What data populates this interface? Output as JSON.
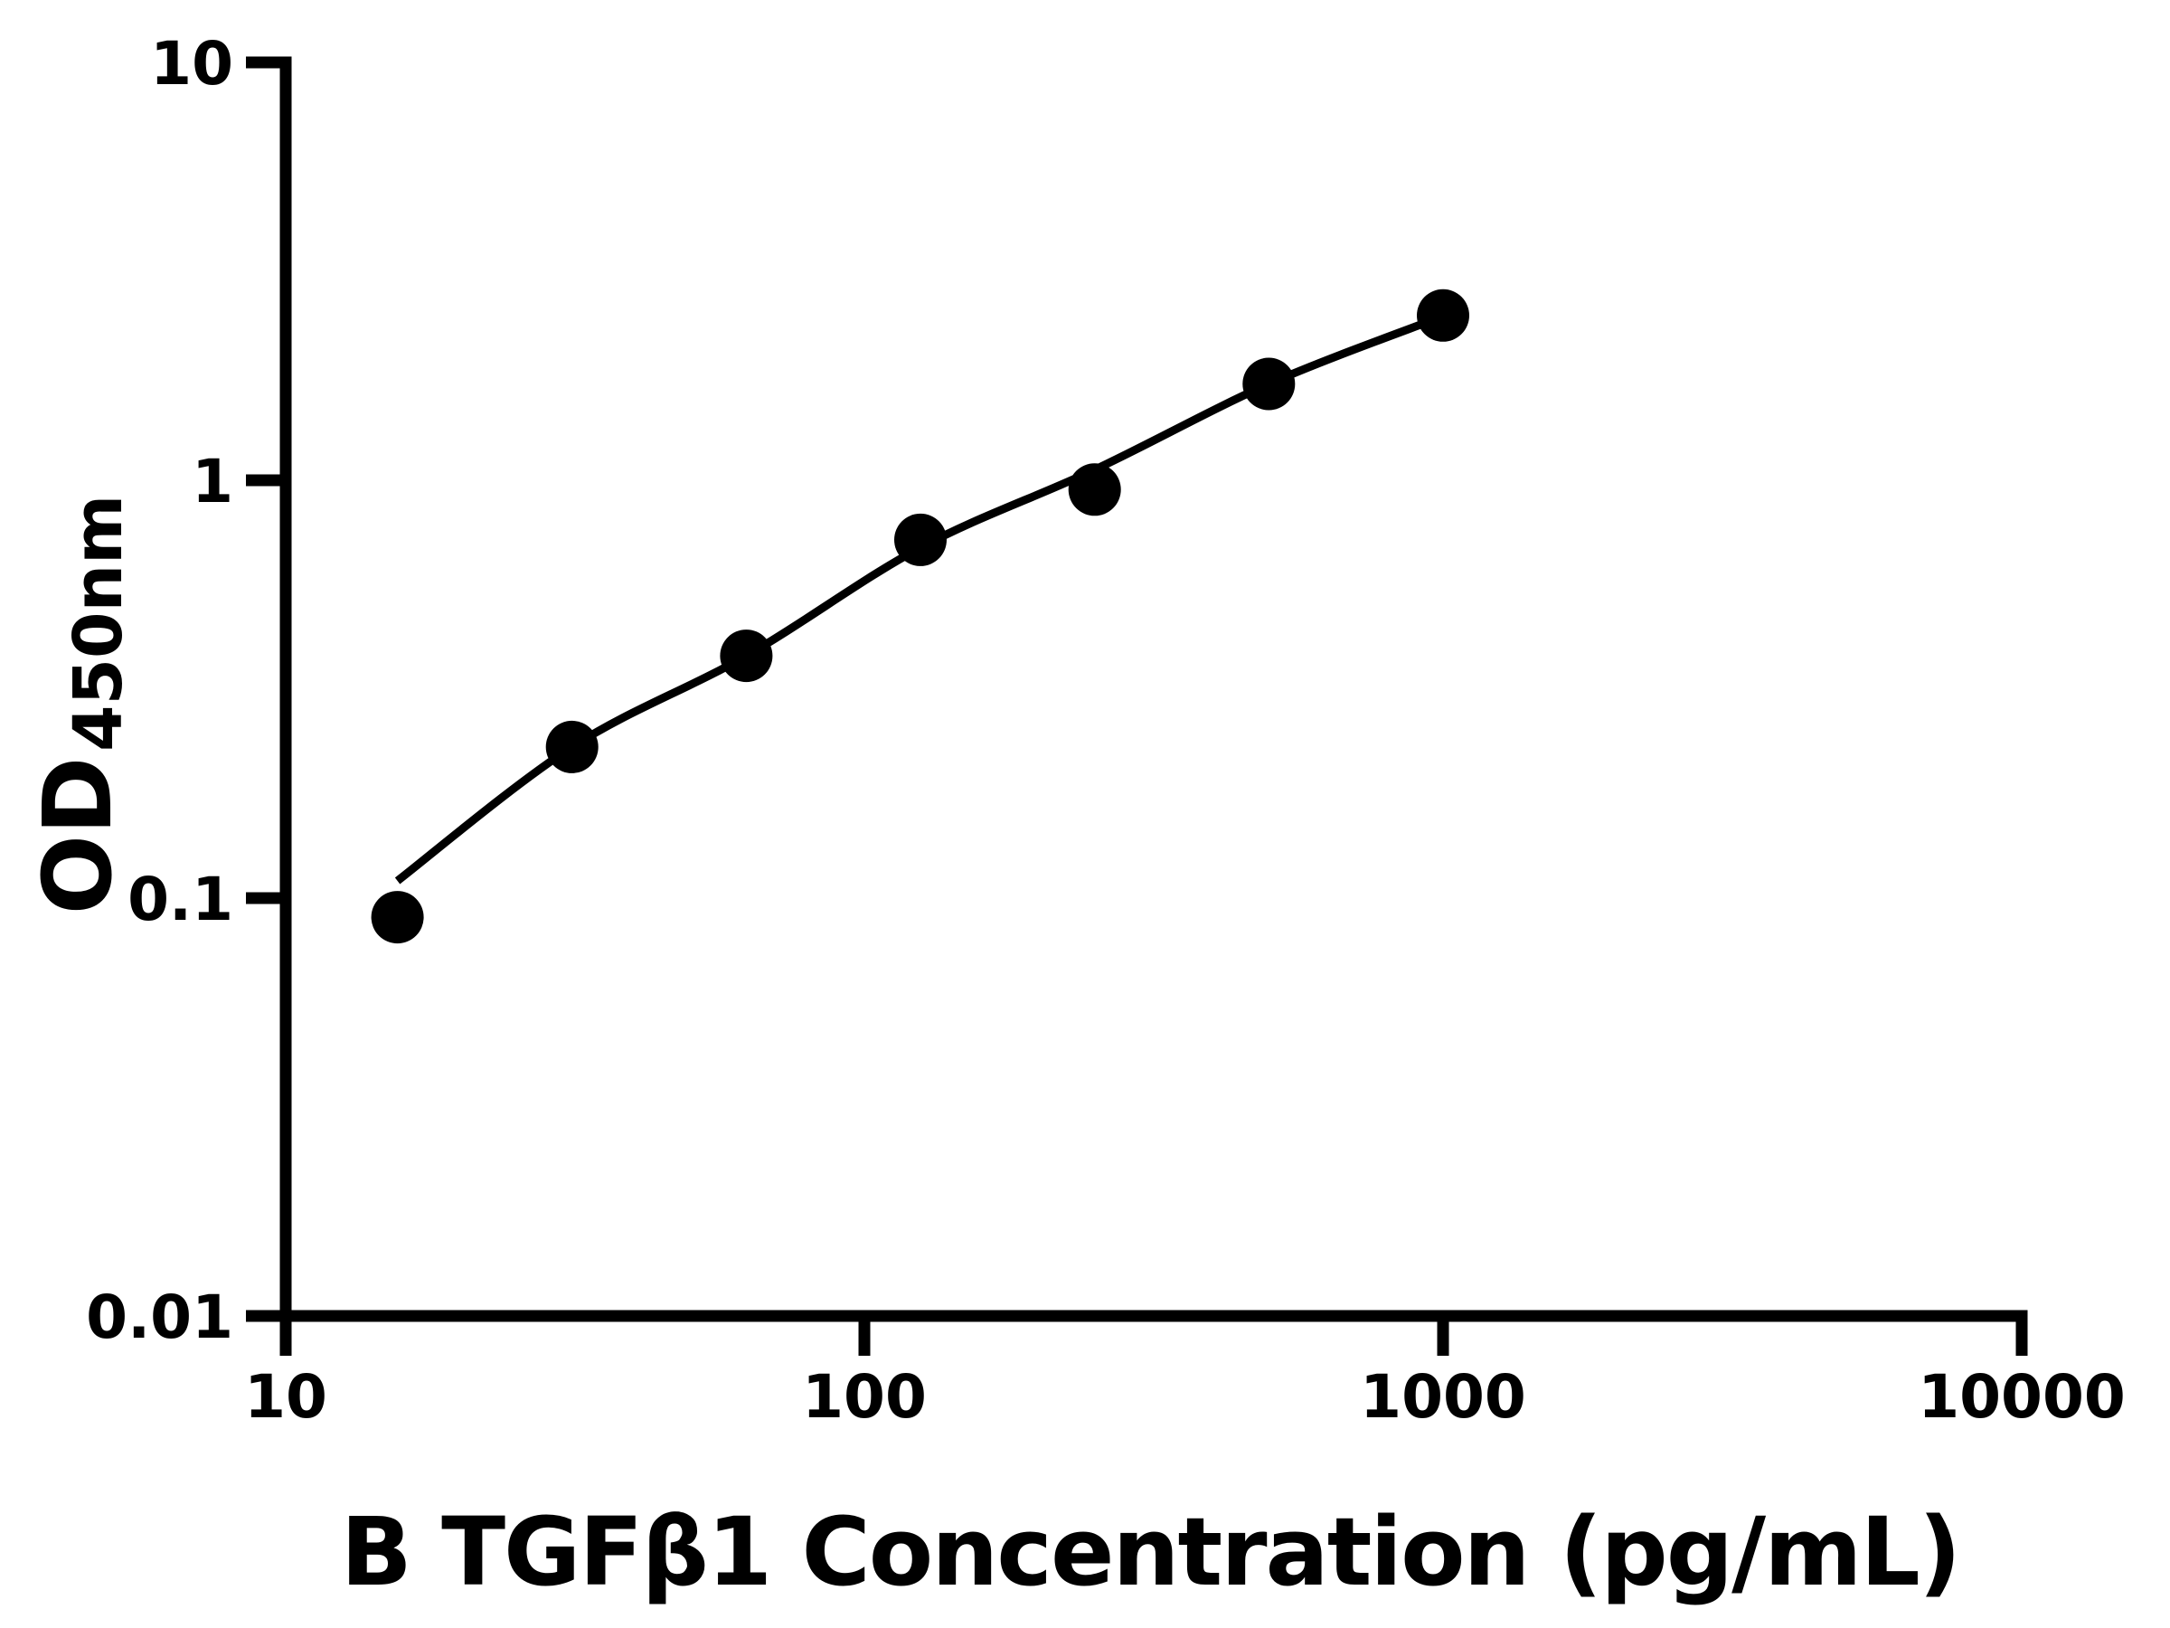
{
  "figure": {
    "background_color": "#ffffff",
    "ink_color": "#000000"
  },
  "chart_data": {
    "type": "scatter",
    "title": "",
    "xlabel": "B TGFβ1 Concentration (pg/mL)",
    "ylabel_main": "OD",
    "ylabel_sub": "450nm",
    "x_scale": "log",
    "y_scale": "log",
    "xlim": [
      10,
      10000
    ],
    "ylim": [
      0.01,
      10
    ],
    "grid": false,
    "legend": "none",
    "x_ticks": [
      {
        "value": 10,
        "label": "10"
      },
      {
        "value": 100,
        "label": "100"
      },
      {
        "value": 1000,
        "label": "1000"
      },
      {
        "value": 10000,
        "label": "10000"
      }
    ],
    "y_ticks": [
      {
        "value": 10,
        "label": "10"
      },
      {
        "value": 1,
        "label": "1"
      },
      {
        "value": 0.1,
        "label": "0.1"
      },
      {
        "value": 0.01,
        "label": "0.01"
      }
    ],
    "series": [
      {
        "name": "standard-points",
        "type": "scatter",
        "marker": "filled-circle",
        "color": "#000000",
        "x": [
          15.6,
          31.25,
          62.5,
          125,
          250,
          500,
          1000
        ],
        "y": [
          0.09,
          0.23,
          0.38,
          0.72,
          0.95,
          1.7,
          2.48
        ]
      },
      {
        "name": "fit-curve",
        "type": "line",
        "color": "#000000",
        "x": [
          15.6,
          31.25,
          62.5,
          125,
          250,
          500,
          1000
        ],
        "y": [
          0.11,
          0.23,
          0.38,
          0.69,
          1.06,
          1.7,
          2.47
        ]
      }
    ]
  }
}
